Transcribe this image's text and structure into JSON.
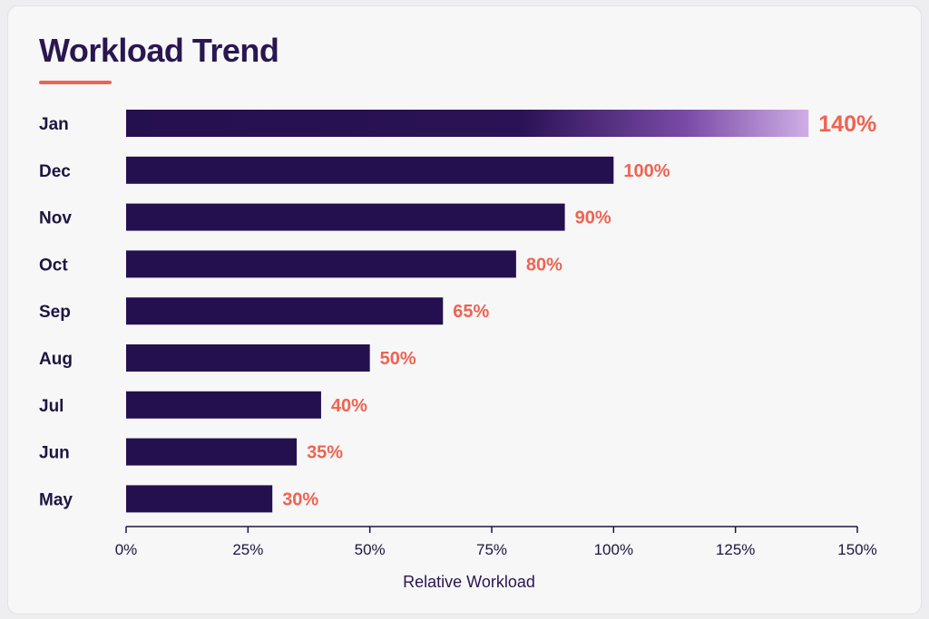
{
  "colors": {
    "bar": "#25104f",
    "accent": "#ef6351",
    "highlight_end": "#cfaee6"
  },
  "chart_data": {
    "type": "bar",
    "orientation": "horizontal",
    "title": "Workload Trend",
    "xlabel": "Relative Workload",
    "ylabel": "",
    "xlim": [
      0,
      150
    ],
    "x_ticks": [
      "0%",
      "25%",
      "50%",
      "75%",
      "100%",
      "125%",
      "150%"
    ],
    "categories": [
      "Jan",
      "Dec",
      "Nov",
      "Oct",
      "Sep",
      "Aug",
      "Jul",
      "Jun",
      "May"
    ],
    "values": [
      140,
      100,
      90,
      80,
      65,
      50,
      40,
      35,
      30
    ],
    "value_labels": [
      "140%",
      "100%",
      "90%",
      "80%",
      "65%",
      "50%",
      "40%",
      "35%",
      "30%"
    ],
    "grid": false
  }
}
